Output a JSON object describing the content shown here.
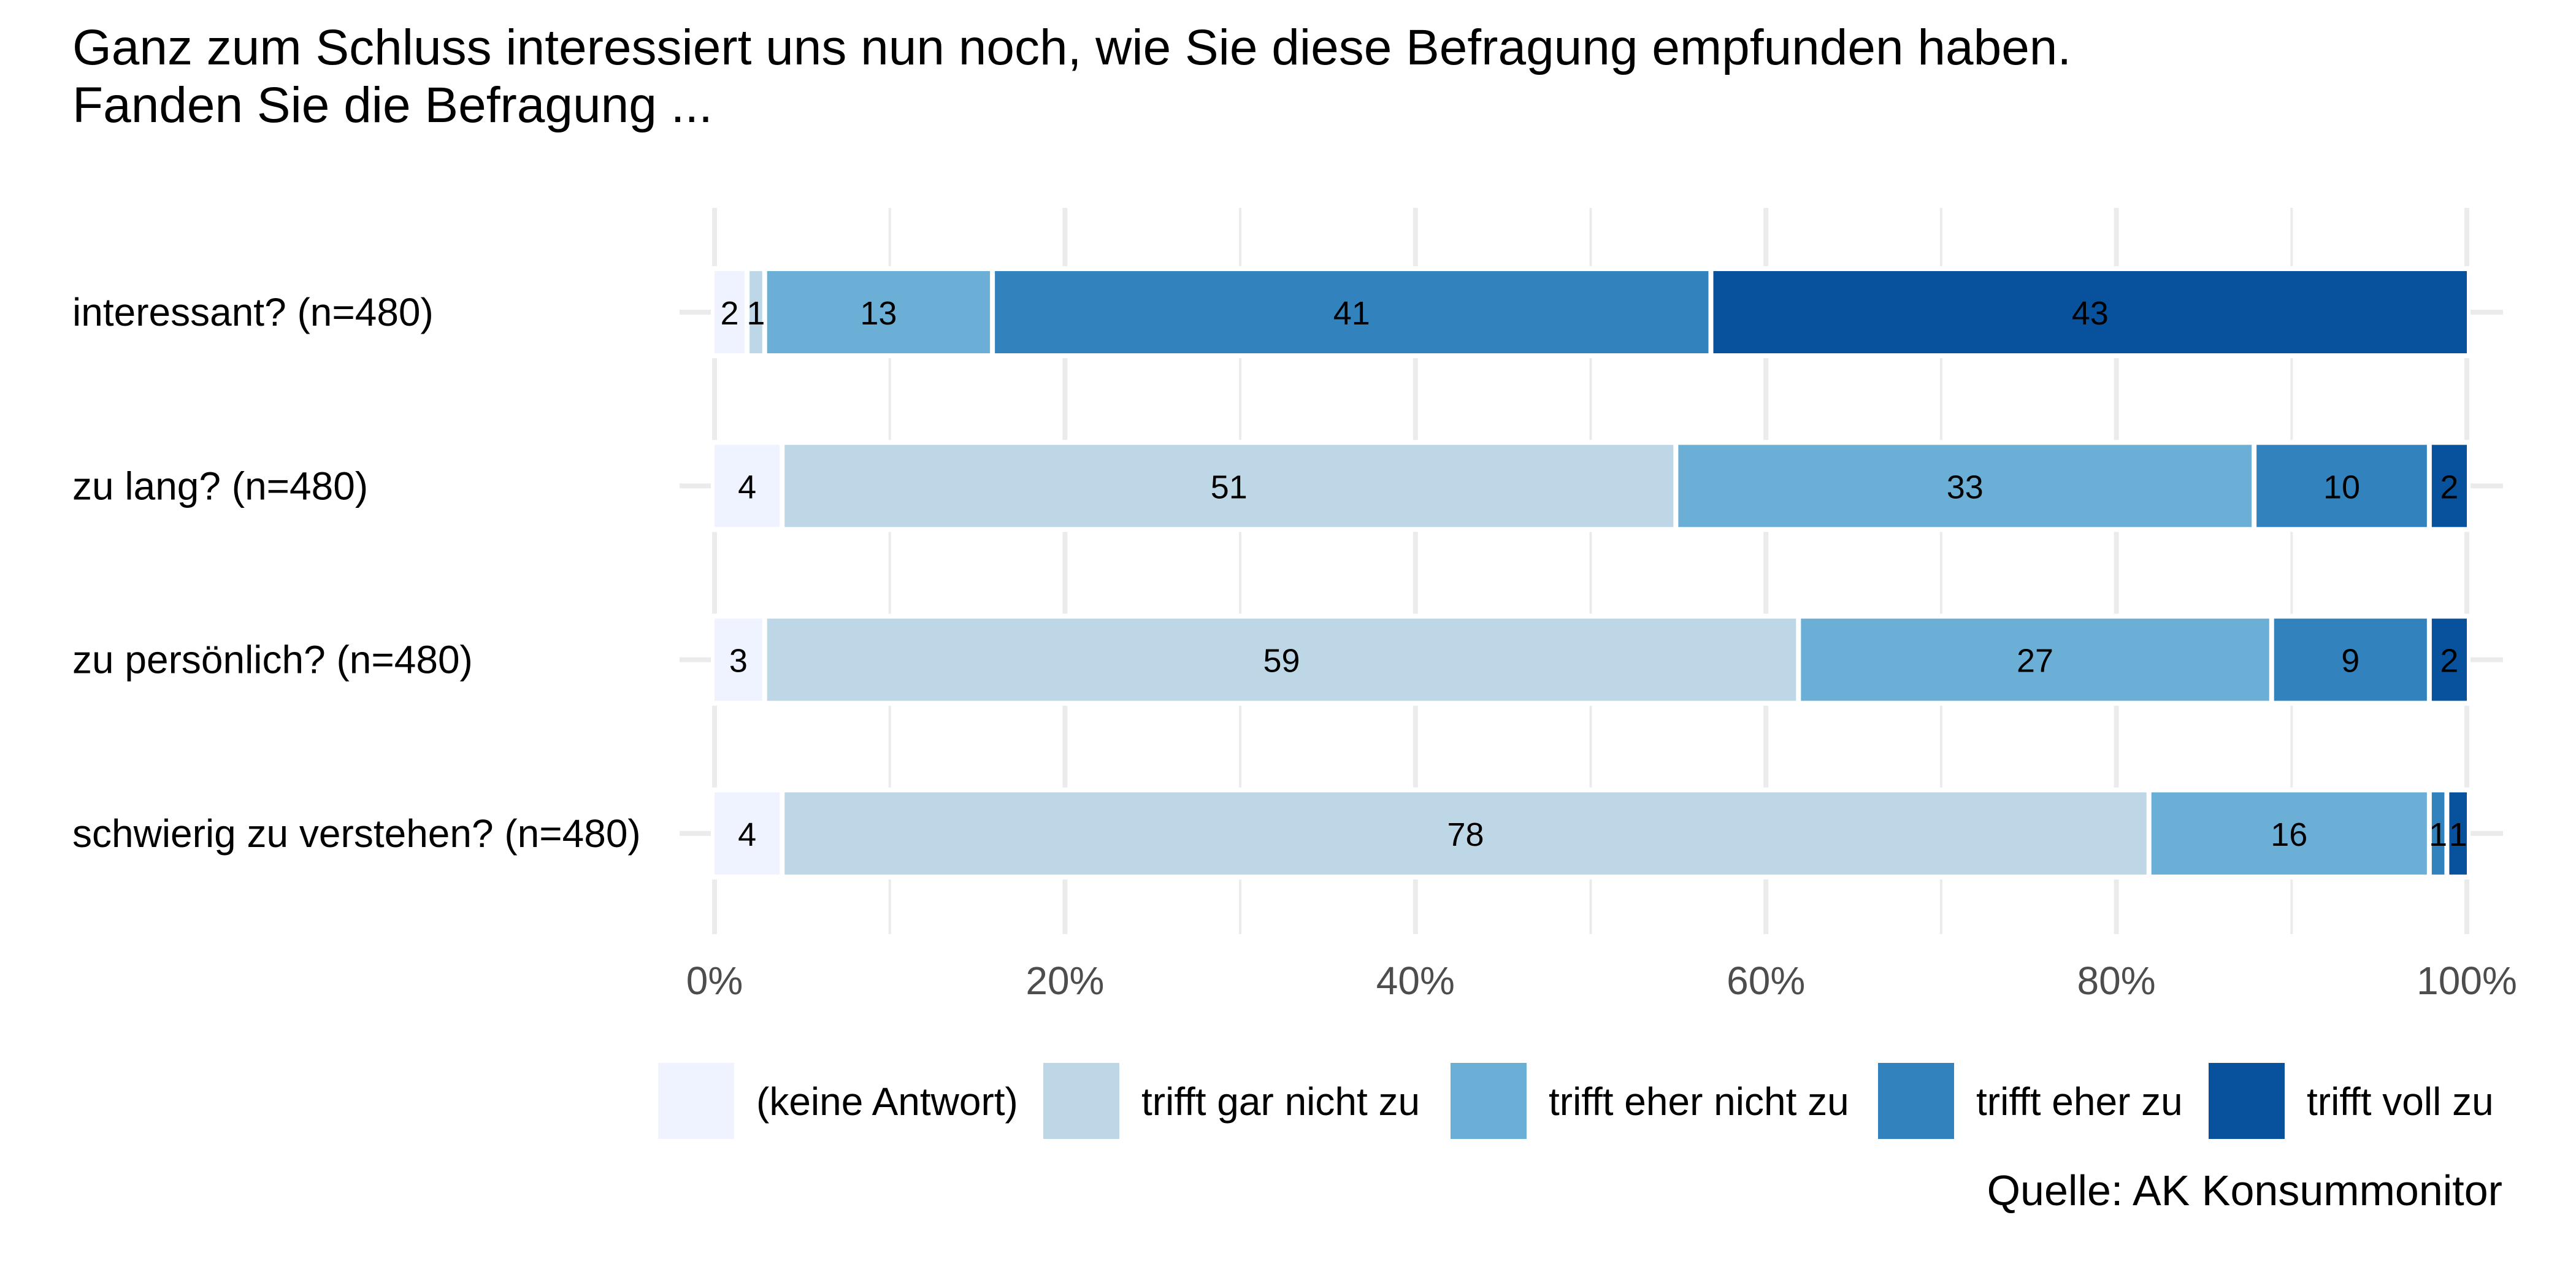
{
  "chart_data": {
    "type": "bar",
    "orientation": "horizontal",
    "stacked": true,
    "title": "Ganz zum Schluss interessiert uns nun noch, wie Sie diese Befragung empfunden haben.",
    "subtitle": "Fanden Sie die Befragung ...",
    "xlabel": "",
    "ylabel": "",
    "xlim": [
      0,
      100
    ],
    "x_ticks": [
      0,
      20,
      40,
      60,
      80,
      100
    ],
    "x_tick_labels": [
      "0%",
      "20%",
      "40%",
      "60%",
      "80%",
      "100%"
    ],
    "grid": true,
    "legend_position": "bottom",
    "categories": [
      "interessant? (n=480)",
      "zu lang? (n=480)",
      "zu persönlich? (n=480)",
      "schwierig zu verstehen? (n=480)"
    ],
    "series": [
      {
        "name": "(keine Antwort)",
        "color": "#eff3ff",
        "values": [
          2,
          4,
          3,
          4
        ]
      },
      {
        "name": "trifft gar nicht zu",
        "color": "#bdd7e7",
        "values": [
          1,
          51,
          59,
          78
        ]
      },
      {
        "name": "trifft eher nicht zu",
        "color": "#6baed6",
        "values": [
          13,
          33,
          27,
          16
        ]
      },
      {
        "name": "trifft eher zu",
        "color": "#3182bd",
        "values": [
          41,
          10,
          9,
          1
        ]
      },
      {
        "name": "trifft voll zu",
        "color": "#08519c",
        "values": [
          43,
          2,
          2,
          1
        ]
      }
    ],
    "caption": "Quelle: AK Konsummonitor"
  }
}
